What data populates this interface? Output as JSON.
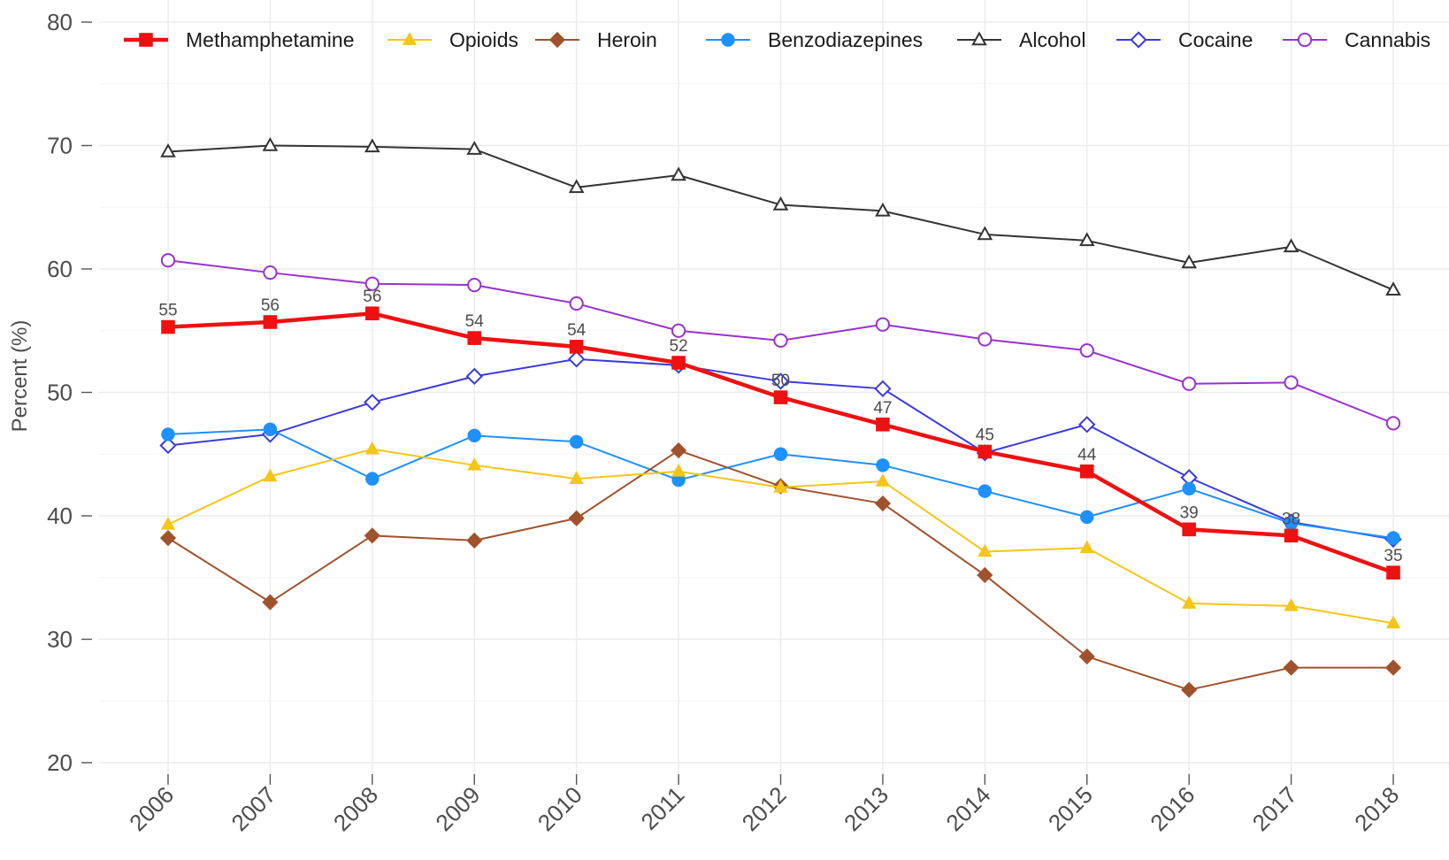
{
  "chart_data": {
    "type": "line",
    "title": "",
    "xlabel": "",
    "ylabel": "Percent (%)",
    "ylim": [
      20,
      80
    ],
    "yticks": [
      20,
      30,
      40,
      50,
      60,
      70,
      80
    ],
    "grid": true,
    "legend_position": "top",
    "x": [
      2006,
      2007,
      2008,
      2009,
      2010,
      2011,
      2012,
      2013,
      2014,
      2015,
      2016,
      2017,
      2018
    ],
    "series": [
      {
        "name": "Methamphetamine",
        "color": "#ee1111",
        "marker": "filled-square",
        "values": [
          55.3,
          55.7,
          56.4,
          54.4,
          53.7,
          52.4,
          49.6,
          47.4,
          45.2,
          43.6,
          38.9,
          38.4,
          35.4
        ],
        "labels": [
          "55",
          "56",
          "56",
          "54",
          "54",
          "52",
          "50",
          "47",
          "45",
          "44",
          "39",
          "38",
          "35"
        ]
      },
      {
        "name": "Opioids",
        "color": "#f5c518",
        "marker": "filled-triangle",
        "values": [
          39.3,
          43.2,
          45.4,
          44.1,
          43.0,
          43.6,
          42.3,
          42.8,
          37.1,
          37.4,
          32.9,
          32.7,
          31.3
        ]
      },
      {
        "name": "Heroin",
        "color": "#a0522d",
        "marker": "filled-diamond",
        "values": [
          38.2,
          33.0,
          38.4,
          38.0,
          39.8,
          45.3,
          42.4,
          41.0,
          35.2,
          28.6,
          25.9,
          27.7,
          27.7
        ]
      },
      {
        "name": "Benzodiazepines",
        "color": "#1e90ff",
        "marker": "filled-circle",
        "values": [
          46.6,
          47.0,
          43.0,
          46.5,
          46.0,
          42.9,
          45.0,
          44.1,
          42.0,
          39.9,
          42.2,
          39.4,
          38.2
        ]
      },
      {
        "name": "Alcohol",
        "color": "#333333",
        "marker": "open-triangle",
        "values": [
          69.5,
          70.0,
          69.9,
          69.7,
          66.6,
          67.6,
          65.2,
          64.7,
          62.8,
          62.3,
          60.5,
          61.8,
          58.3
        ]
      },
      {
        "name": "Cocaine",
        "color": "#3b3bdd",
        "marker": "open-diamond",
        "values": [
          45.7,
          46.6,
          49.2,
          51.3,
          52.7,
          52.2,
          50.9,
          50.3,
          45.1,
          47.4,
          43.1,
          39.5,
          38.1
        ]
      },
      {
        "name": "Cannabis",
        "color": "#9932cc",
        "marker": "open-circle",
        "values": [
          60.7,
          59.7,
          58.8,
          58.7,
          57.2,
          55.0,
          54.2,
          55.5,
          54.3,
          53.4,
          50.7,
          50.8,
          47.5
        ]
      }
    ]
  }
}
